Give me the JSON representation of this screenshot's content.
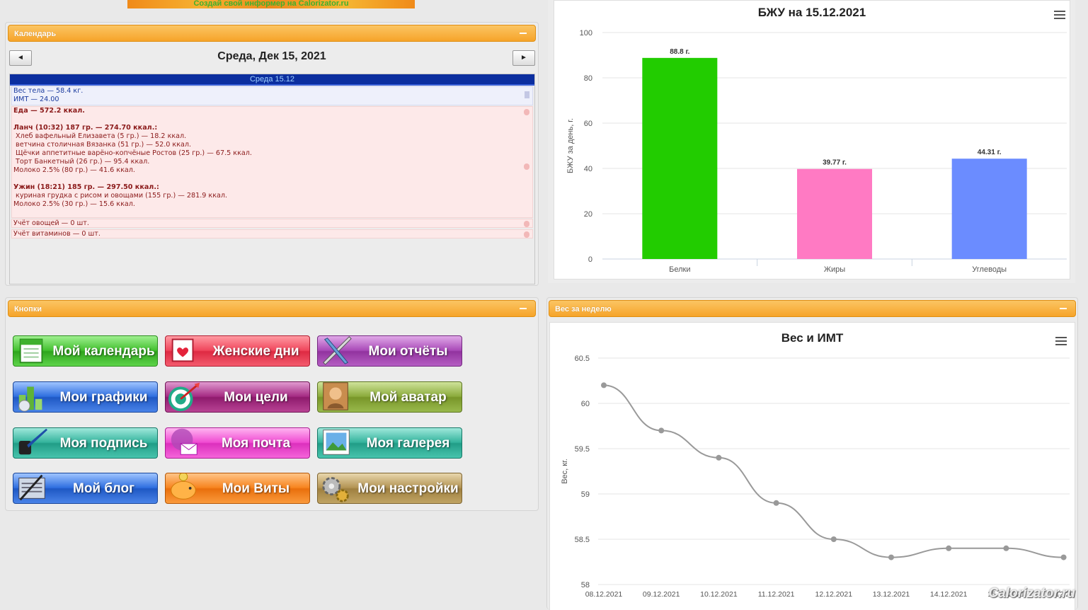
{
  "banner": {
    "text": "Создай свой информер на Calorizator.ru"
  },
  "calendar_panel": {
    "title": "Календарь",
    "prev_label": "◄",
    "next_label": "►",
    "date_title": "Среда, Дек 15, 2021",
    "day_header": "Среда 15.12",
    "weight_line": "Вес тела — 58.4 кг.",
    "bmi_line": "ИМТ — 24.00",
    "food_lines": [
      "Еда — 572.2 ккал.",
      "",
      "Ланч (10:32) 187 гр. — 274.70 ккал.:",
      " Хлеб вафельный Елизавета (5 гр.) — 18.2 ккал.",
      " ветчина столичная Вязанка (51 гр.) — 52.0 ккал.",
      " Щёчки аппетитные варёно-копчёные Ростов (25 гр.) — 67.5 ккал.",
      " Торт Банкетный (26 гр.) — 95.4 ккал.",
      "Молоко 2.5% (80 гр.) — 41.6 ккал.",
      "",
      "Ужин (18:21) 185 гр. — 297.50 ккал.:",
      " куриная грудка с рисом и овощами (155 гр.) — 281.9 ккал.",
      "Молоко 2.5% (30 гр.) — 15.6 ккал."
    ],
    "veg_line": "Учёт овощей — 0 шт.",
    "vit_line": "Учёт витаминов — 0 шт."
  },
  "buttons_panel": {
    "title": "Кнопки",
    "buttons": [
      {
        "label": "Мой календарь",
        "icon": "calendar-icon",
        "color": "green"
      },
      {
        "label": "Женские дни",
        "icon": "heart-calendar-icon",
        "color": "red"
      },
      {
        "label": "Мои отчёты",
        "icon": "ruler-pencil-icon",
        "color": "purple"
      },
      {
        "label": "Мои графики",
        "icon": "bar-graph-icon",
        "color": "blue"
      },
      {
        "label": "Мои цели",
        "icon": "target-darts-icon",
        "color": "plum"
      },
      {
        "label": "Мой аватар",
        "icon": "portrait-icon",
        "color": "olive"
      },
      {
        "label": "Моя подпись",
        "icon": "ink-pen-icon",
        "color": "teal"
      },
      {
        "label": "Моя почта",
        "icon": "mail-icon",
        "color": "pink"
      },
      {
        "label": "Моя галерея",
        "icon": "photo-icon",
        "color": "teal"
      },
      {
        "label": "Мой блог",
        "icon": "blog-keyboard-icon",
        "color": "blue"
      },
      {
        "label": "Мои Виты",
        "icon": "piggy-bank-icon",
        "color": "orange"
      },
      {
        "label": "Мои настройки",
        "icon": "gears-icon",
        "color": "tan"
      }
    ]
  },
  "weekly_panel": {
    "title": "Вес за неделю"
  },
  "watermark": "Calorizator.ru",
  "chart_data": [
    {
      "type": "bar",
      "title": "БЖУ на 15.12.2021",
      "ylabel": "БЖУ за день, г.",
      "xlabel": "",
      "ylim": [
        0,
        100
      ],
      "yticks": [
        0,
        20,
        40,
        60,
        80,
        100
      ],
      "categories": [
        "Белки",
        "Жиры",
        "Углеводы"
      ],
      "values": [
        88.8,
        39.77,
        44.31
      ],
      "data_labels": [
        "88.8 г.",
        "39.77 г.",
        "44.31 г."
      ],
      "colors": [
        "#22cc00",
        "#ff7ac3",
        "#6b8cff"
      ],
      "grid": true,
      "legend": "none"
    },
    {
      "type": "line",
      "title": "Вес и ИМТ",
      "ylabel": "Вес, кг.",
      "xlabel": "",
      "ylim": [
        58,
        60.5
      ],
      "yticks": [
        58,
        58.5,
        59,
        59.5,
        60,
        60.5
      ],
      "x": [
        "08.12.2021",
        "09.12.2021",
        "10.12.2021",
        "11.12.2021",
        "12.12.2021",
        "13.12.2021",
        "14.12.2021",
        "15.12.2021",
        "16.12.2021"
      ],
      "series": [
        {
          "values": [
            60.2,
            59.7,
            59.4,
            58.9,
            58.5,
            58.3,
            58.4,
            58.4,
            58.3
          ],
          "color": "#999999"
        }
      ],
      "grid": true,
      "legend": "none"
    }
  ]
}
